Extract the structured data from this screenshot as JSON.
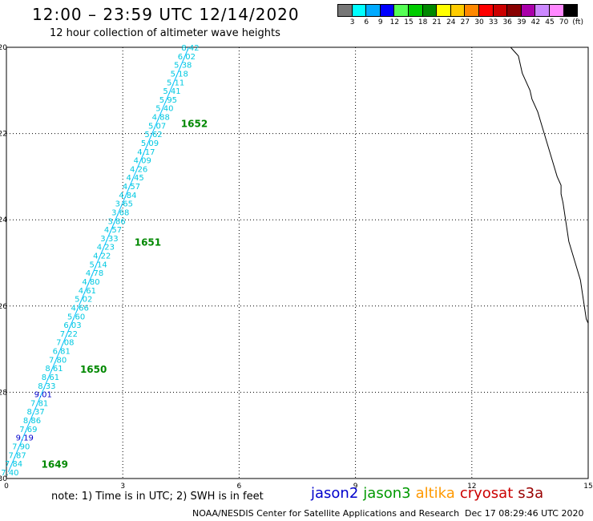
{
  "header": {
    "title": "12:00 – 23:59 UTC 12/14/2020",
    "subtitle": "12 hour collection of altimeter wave heights"
  },
  "legend": {
    "colors": [
      "#777777",
      "#00ffff",
      "#00aaff",
      "#0000ff",
      "#55ff55",
      "#00cc00",
      "#008800",
      "#ffff00",
      "#ffcc00",
      "#ff8800",
      "#ff0000",
      "#cc0000",
      "#880000",
      "#aa00aa",
      "#cc88ff",
      "#ff88ff",
      "#000000"
    ],
    "labels": [
      "3",
      "6",
      "9",
      "12",
      "15",
      "18",
      "21",
      "24",
      "27",
      "30",
      "33",
      "36",
      "39",
      "42",
      "45",
      "70",
      "(ft)"
    ]
  },
  "axes": {
    "x_ticks": [
      "0",
      "3",
      "6",
      "9",
      "12",
      "15"
    ],
    "y_ticks": [
      "-20",
      "-22",
      "-24",
      "-26",
      "-28",
      "-30"
    ]
  },
  "map_data": {
    "x_range": [
      0,
      15
    ],
    "y_range": [
      -30,
      -20
    ],
    "track_start": [
      4.7,
      -20.0
    ],
    "track_end": [
      0.05,
      -29.85
    ],
    "track_color": "#00bfff",
    "label_color_default": "#00c8e0",
    "label_color_blue": "#0000cc",
    "heights": [
      "8.42",
      "6.02",
      "5.38",
      "5.18",
      "5.11",
      "5.41",
      "5.95",
      "5.40",
      "4.88",
      "5.07",
      "5.62",
      "5.09",
      "4.17",
      "4.09",
      "4.26",
      "4.45",
      "4.57",
      "4.84",
      "3.65",
      "3.68",
      "3.86",
      "4.57",
      "3.33",
      "4.23",
      "4.22",
      "5.14",
      "4.78",
      "4.80",
      "4.61",
      "5.02",
      "4.66",
      "5.60",
      "6.03",
      "7.22",
      "7.08",
      "6.81",
      "7.80",
      "8.61",
      "8.61",
      "8.33",
      "9.01",
      "7.81",
      "8.37",
      "8.86",
      "7.69",
      "9.19",
      "7.90",
      "7.87",
      "7.84",
      "7.40"
    ],
    "height_colors": [
      "c",
      "c",
      "c",
      "c",
      "c",
      "c",
      "c",
      "c",
      "c",
      "c",
      "c",
      "c",
      "c",
      "c",
      "c",
      "c",
      "c",
      "c",
      "c",
      "c",
      "c",
      "c",
      "c",
      "c",
      "c",
      "c",
      "c",
      "c",
      "c",
      "c",
      "c",
      "c",
      "c",
      "c",
      "c",
      "c",
      "c",
      "c",
      "c",
      "c",
      "b",
      "c",
      "c",
      "c",
      "c",
      "b",
      "c",
      "c",
      "c",
      "c"
    ],
    "times": [
      {
        "label": "1652",
        "lon": 4.5,
        "lat": -21.85
      },
      {
        "label": "1651",
        "lon": 3.3,
        "lat": -24.6
      },
      {
        "label": "1650",
        "lon": 1.9,
        "lat": -27.55
      },
      {
        "label": "1649",
        "lon": 0.9,
        "lat": -29.75
      }
    ],
    "time_color": "#008800",
    "coastline": [
      [
        13.0,
        -20.0
      ],
      [
        13.1,
        -20.1
      ],
      [
        13.2,
        -20.2
      ],
      [
        13.25,
        -20.4
      ],
      [
        13.3,
        -20.6
      ],
      [
        13.4,
        -20.8
      ],
      [
        13.5,
        -21.0
      ],
      [
        13.55,
        -21.2
      ],
      [
        13.7,
        -21.5
      ],
      [
        13.8,
        -21.8
      ],
      [
        13.9,
        -22.1
      ],
      [
        14.0,
        -22.4
      ],
      [
        14.1,
        -22.7
      ],
      [
        14.2,
        -23.0
      ],
      [
        14.3,
        -23.2
      ],
      [
        14.3,
        -23.4
      ],
      [
        14.35,
        -23.6
      ],
      [
        14.4,
        -23.9
      ],
      [
        14.45,
        -24.2
      ],
      [
        14.5,
        -24.5
      ],
      [
        14.6,
        -24.8
      ],
      [
        14.7,
        -25.1
      ],
      [
        14.8,
        -25.4
      ],
      [
        14.85,
        -25.7
      ],
      [
        14.9,
        -26.0
      ],
      [
        14.95,
        -26.3
      ],
      [
        15.0,
        -26.4
      ]
    ]
  },
  "footer": {
    "note": "note:  1) Time is in UTC;  2) SWH is in feet",
    "sats": [
      {
        "name": "jason2",
        "color": "#0000cc"
      },
      {
        "name": "jason3",
        "color": "#009900"
      },
      {
        "name": "altika",
        "color": "#ff9900"
      },
      {
        "name": "cryosat",
        "color": "#cc0000"
      },
      {
        "name": "s3a",
        "color": "#990000"
      }
    ],
    "credit": "NOAA/NESDIS Center for Satellite Applications and Research",
    "timestamp": "Dec 17 08:29:46 UTC 2020"
  }
}
